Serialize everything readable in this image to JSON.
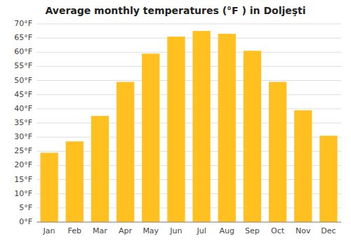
{
  "chart_data": {
    "type": "bar",
    "title": "Average monthly temperatures (°F ) in Doljeşti",
    "categories": [
      "Jan",
      "Feb",
      "Mar",
      "Apr",
      "May",
      "Jun",
      "Jul",
      "Aug",
      "Sep",
      "Oct",
      "Nov",
      "Dec"
    ],
    "values": [
      24.5,
      28.5,
      37.5,
      49.5,
      59.5,
      65.5,
      67.5,
      66.5,
      60.5,
      49.5,
      39.5,
      30.5
    ],
    "color": "#FFC020",
    "ylim": [
      0,
      70
    ],
    "yticks": [
      {
        "value": 0,
        "label": "0°F"
      },
      {
        "value": 5,
        "label": "5°F"
      },
      {
        "value": 10,
        "label": "10°F"
      },
      {
        "value": 15,
        "label": "15°F"
      },
      {
        "value": 20,
        "label": "20°F"
      },
      {
        "value": 25,
        "label": "25°F"
      },
      {
        "value": 30,
        "label": "30°F"
      },
      {
        "value": 35,
        "label": "35°F"
      },
      {
        "value": 40,
        "label": "40°F"
      },
      {
        "value": 45,
        "label": "45°F"
      },
      {
        "value": 50,
        "label": "50°F"
      },
      {
        "value": 55,
        "label": "55°F"
      },
      {
        "value": 60,
        "label": "60°F"
      },
      {
        "value": 65,
        "label": "65°F"
      },
      {
        "value": 70,
        "label": "70°F"
      }
    ],
    "grid": true
  }
}
